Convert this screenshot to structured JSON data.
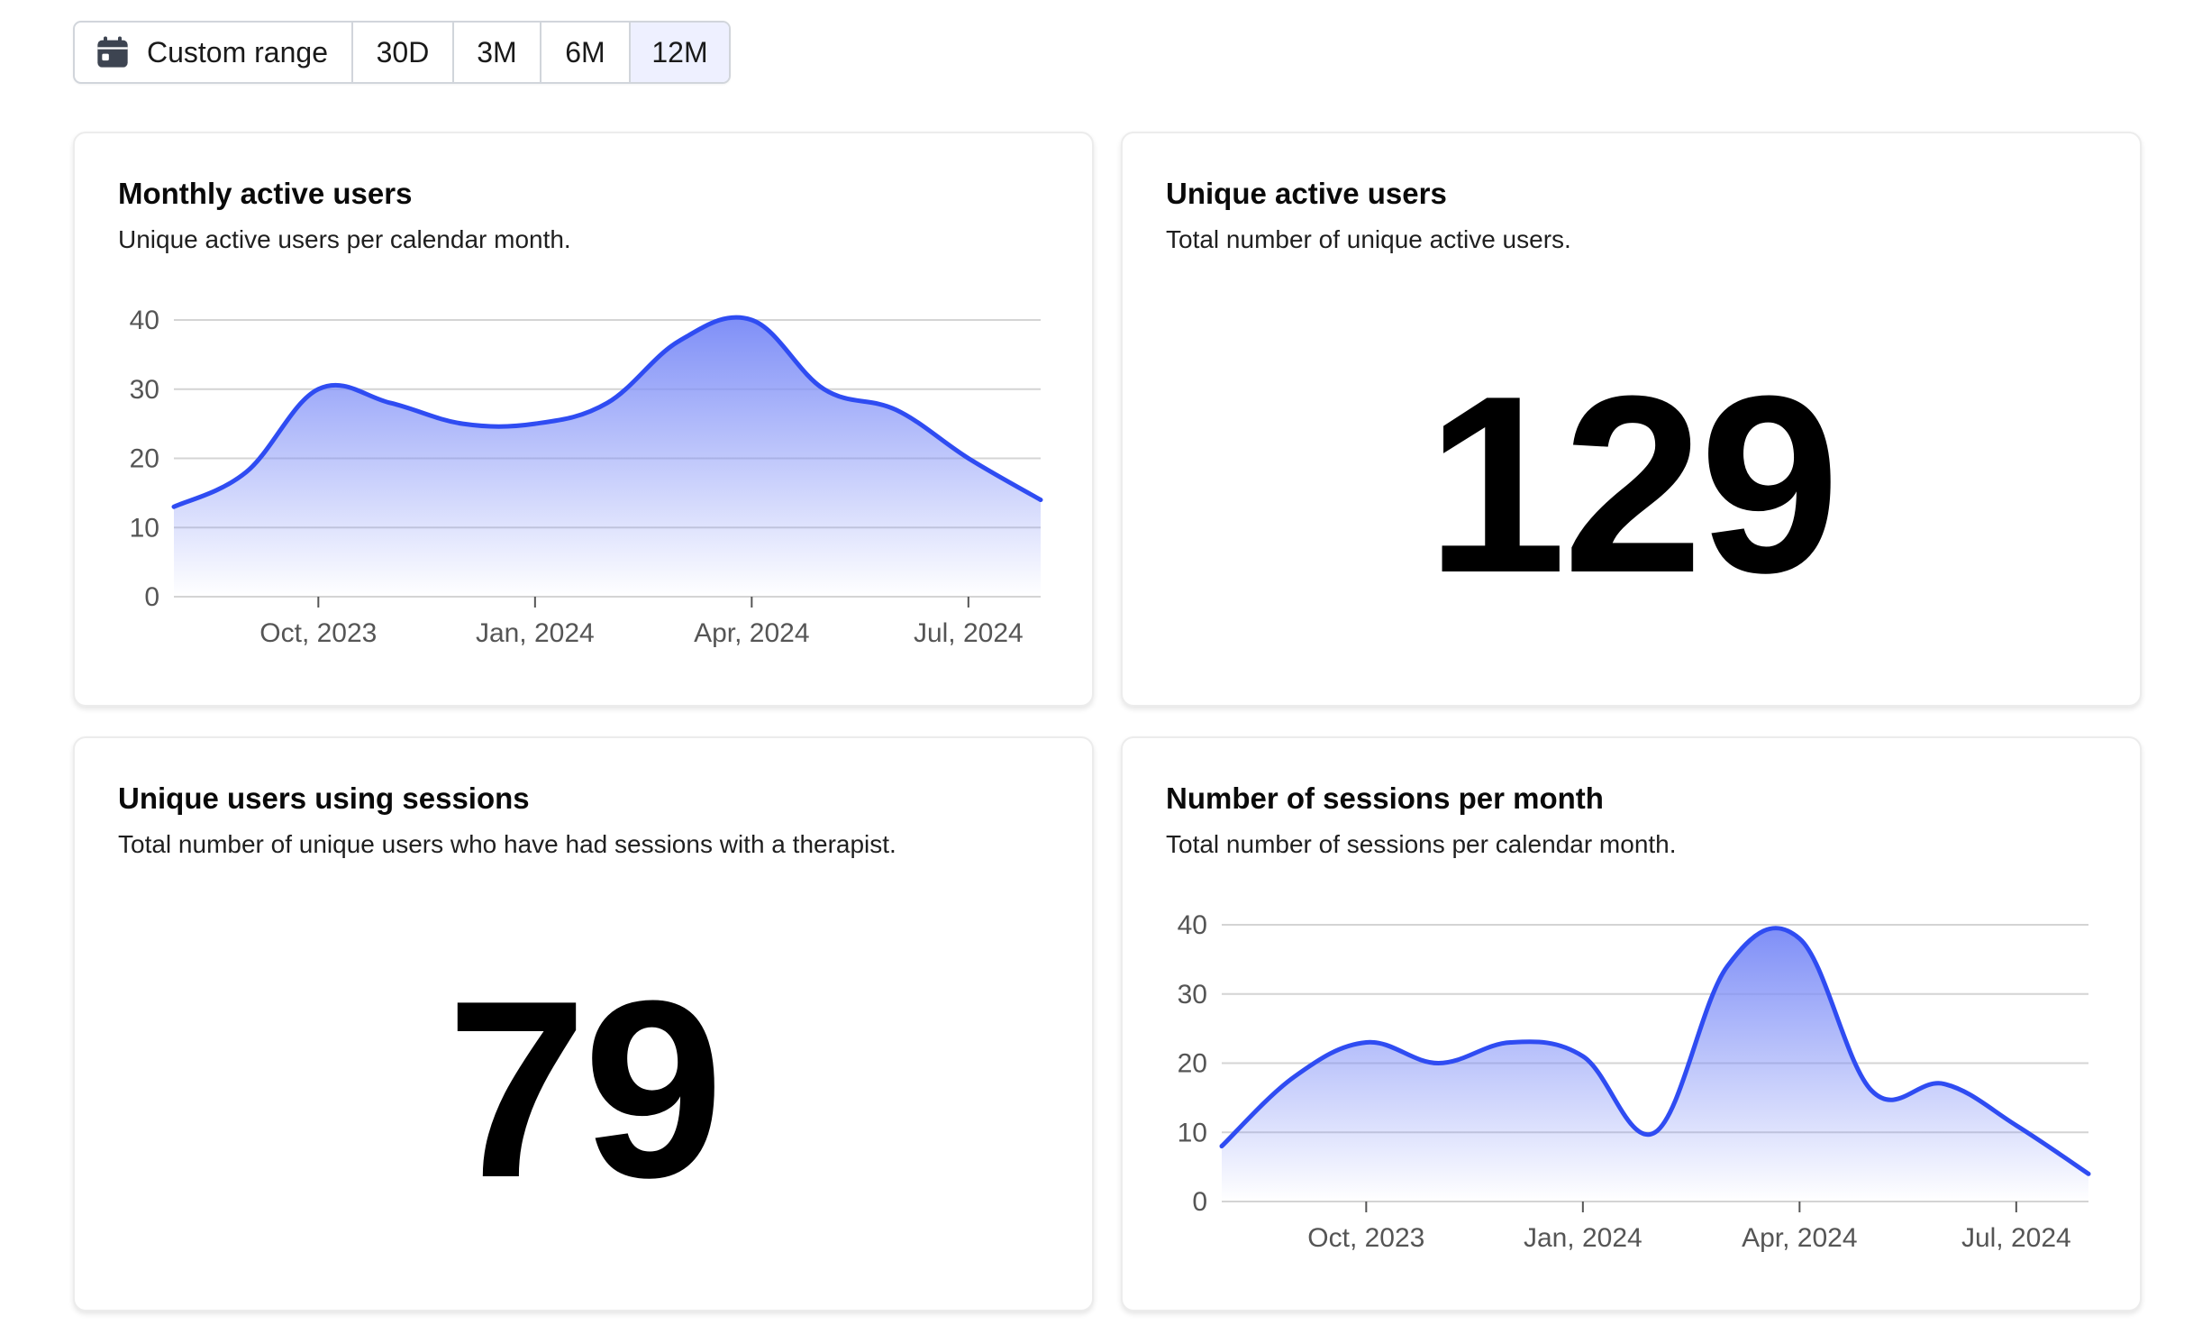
{
  "range_selector": {
    "options": [
      {
        "label": "Custom range",
        "icon": "calendar-icon",
        "active": false
      },
      {
        "label": "30D",
        "active": false
      },
      {
        "label": "3M",
        "active": false
      },
      {
        "label": "6M",
        "active": false
      },
      {
        "label": "12M",
        "active": true
      }
    ]
  },
  "cards": {
    "monthly_active_users": {
      "title": "Monthly active users",
      "subtitle": "Unique active users per calendar month."
    },
    "unique_active_users": {
      "title": "Unique active users",
      "subtitle": "Total number of unique active users.",
      "value": "129"
    },
    "unique_users_sessions": {
      "title": "Unique users using sessions",
      "subtitle": "Total number of unique users who have had sessions with a therapist.",
      "value": "79"
    },
    "sessions_per_month": {
      "title": "Number of sessions per month",
      "subtitle": "Total number of sessions per calendar month."
    }
  },
  "colors": {
    "line": "#2f4cf2",
    "fill_top": "#7f8ff7",
    "grid": "#d4d4d4",
    "active_tab": "#eef0ff"
  },
  "chart_data": [
    {
      "id": "monthly_active_users",
      "type": "area",
      "title": "",
      "xlabel": "",
      "ylabel": "",
      "x": [
        "2023-08",
        "2023-09",
        "2023-10",
        "2023-11",
        "2023-12",
        "2024-01",
        "2024-02",
        "2024-03",
        "2024-04",
        "2024-05",
        "2024-06",
        "2024-07",
        "2024-08"
      ],
      "values": [
        13,
        18,
        30,
        28,
        25,
        25,
        28,
        37,
        40,
        30,
        27,
        20,
        14
      ],
      "ylim": [
        0,
        40
      ],
      "yticks": [
        0,
        10,
        20,
        30,
        40
      ],
      "xticks": [
        {
          "x": "2023-10",
          "label": "Oct, 2023"
        },
        {
          "x": "2024-01",
          "label": "Jan, 2024"
        },
        {
          "x": "2024-04",
          "label": "Apr, 2024"
        },
        {
          "x": "2024-07",
          "label": "Jul, 2024"
        }
      ],
      "grid": true
    },
    {
      "id": "sessions_per_month",
      "type": "area",
      "title": "",
      "xlabel": "",
      "ylabel": "",
      "x": [
        "2023-08",
        "2023-09",
        "2023-10",
        "2023-11",
        "2023-12",
        "2024-01",
        "2024-02",
        "2024-03",
        "2024-04",
        "2024-05",
        "2024-06",
        "2024-07",
        "2024-08"
      ],
      "values": [
        8,
        18,
        23,
        20,
        23,
        21,
        10,
        34,
        38,
        16,
        17,
        11,
        4
      ],
      "ylim": [
        0,
        40
      ],
      "yticks": [
        0,
        10,
        20,
        30,
        40
      ],
      "xticks": [
        {
          "x": "2023-10",
          "label": "Oct, 2023"
        },
        {
          "x": "2024-01",
          "label": "Jan, 2024"
        },
        {
          "x": "2024-04",
          "label": "Apr, 2024"
        },
        {
          "x": "2024-07",
          "label": "Jul, 2024"
        }
      ],
      "grid": true
    }
  ]
}
